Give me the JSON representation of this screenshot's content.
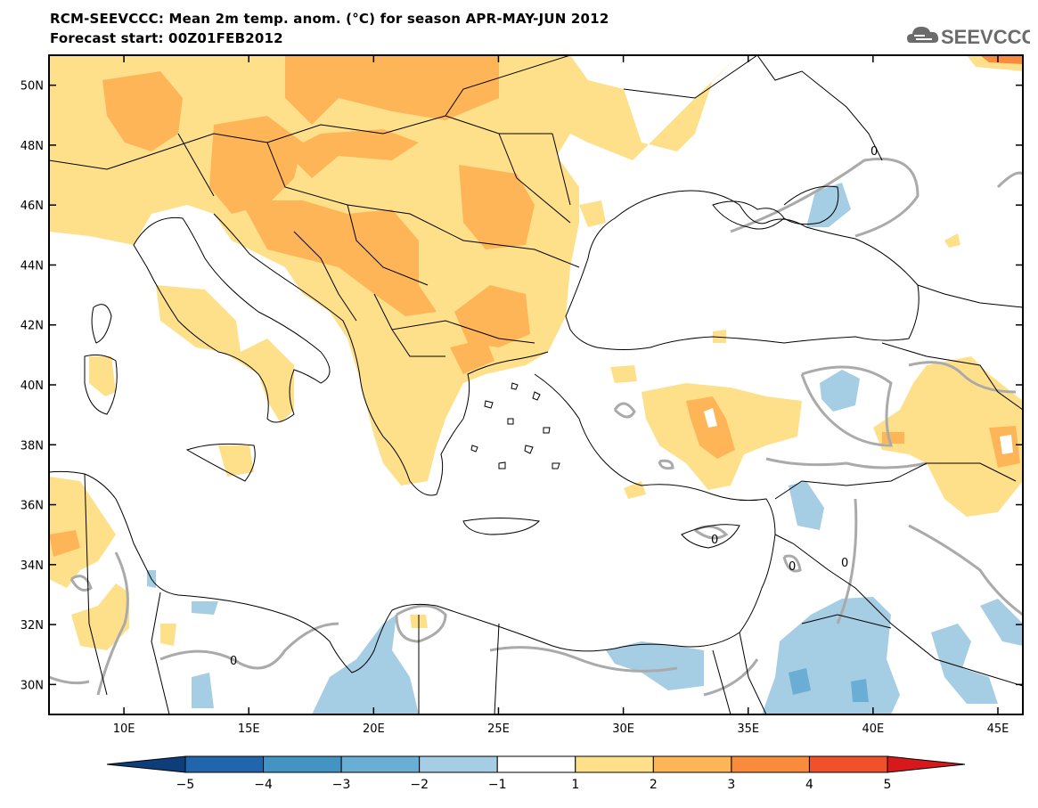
{
  "header": {
    "title_line1": "RCM-SEEVCCC: Mean 2m temp. anom. (°C) for season APR-MAY-JUN 2012",
    "title_line2": "Forecast start: 00Z01FEB2012"
  },
  "logo": {
    "text": "SEEVCCC",
    "icon": "cloud-icon"
  },
  "map": {
    "projection": "lat-lon",
    "lon_range": [
      7,
      46
    ],
    "lat_range": [
      29,
      51
    ],
    "lon_ticks": [
      "10E",
      "15E",
      "20E",
      "25E",
      "30E",
      "35E",
      "40E",
      "45E"
    ],
    "lat_ticks": [
      "30N",
      "32N",
      "34N",
      "36N",
      "38N",
      "40N",
      "42N",
      "44N",
      "46N",
      "48N",
      "50N"
    ],
    "contour_label": "0",
    "contour_color": "#aaaaaa",
    "land_outline_color": "#000000"
  },
  "colorbar": {
    "labels": [
      "-5",
      "-4",
      "-3",
      "-2",
      "-1",
      "1",
      "2",
      "3",
      "4",
      "5"
    ],
    "colors": [
      "#0d3e7a",
      "#2166ac",
      "#4393c3",
      "#6aaed6",
      "#a5cde3",
      "#ffffff",
      "#fee08b",
      "#fdb558",
      "#f98b3c",
      "#f0502a",
      "#d7191c"
    ]
  }
}
